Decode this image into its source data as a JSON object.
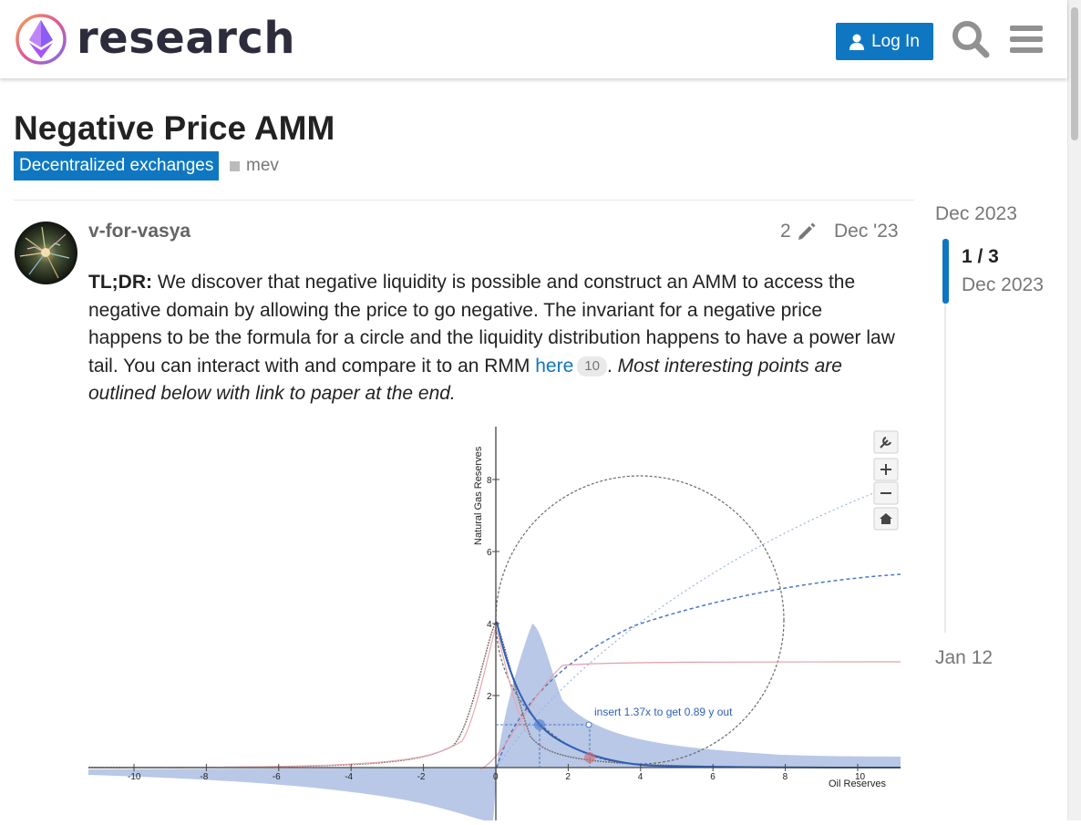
{
  "header": {
    "logo_text": "research",
    "login_label": "Log In"
  },
  "topic": {
    "title": "Negative Price AMM",
    "category": "Decentralized exchanges",
    "tag": "mev"
  },
  "post": {
    "username": "v-for-vasya",
    "edit_count": "2",
    "date": "Dec '23",
    "tldr_label": "TL;DR:",
    "text_1": " We discover that negative liquidity is possible and construct an AMM to access the negative domain by allowing the price to go negative. The invariant for a negative price happens to be the formula for a circle and the liquidity distribution happens to have a power law tail. You can interact with and compare it to an RMM ",
    "link_text": "here",
    "link_clicks": "10",
    "text_2": ". ",
    "italic_text": "Most interesting points are outlined below with link to paper at the end."
  },
  "figure": {
    "ylabel": "Natural Gas Reserves",
    "xlabel": "Oil Reserves",
    "annotation": "insert 1.37x to get 0.89 y out",
    "x_ticks": [
      "-10",
      "-8",
      "-6",
      "-4",
      "-2",
      "0",
      "2",
      "4",
      "6",
      "8",
      "10"
    ],
    "y_ticks": [
      "8",
      "6",
      "4",
      "2"
    ]
  },
  "timeline": {
    "start": "Dec 2023",
    "counter": "1 / 3",
    "month": "Dec 2023",
    "end": "Jan 12"
  },
  "colors": {
    "primary": "#0f77c2",
    "muted": "#777777",
    "text": "#222222"
  }
}
